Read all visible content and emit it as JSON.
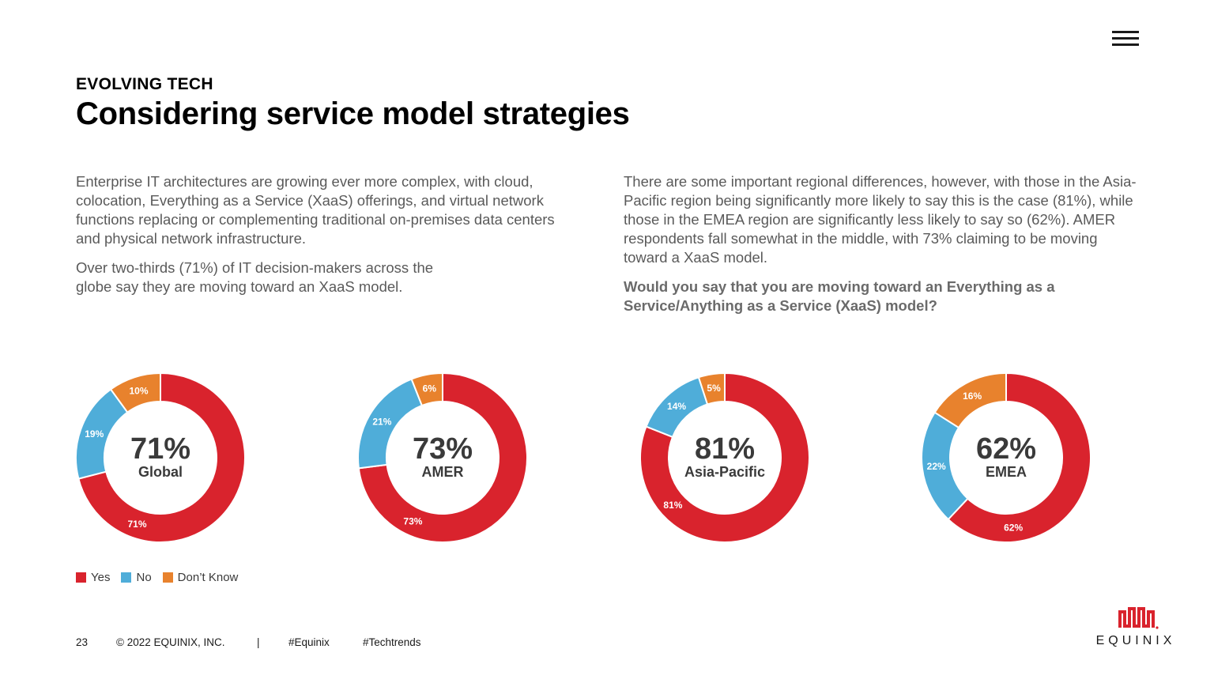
{
  "header": {
    "eyebrow": "EVOLVING TECH",
    "title": "Considering service model strategies"
  },
  "body": {
    "left_para1": "Enterprise IT architectures are growing ever more complex, with cloud, colocation, Everything as a Service (XaaS) offerings, and virtual network functions replacing or complementing traditional on-premises data centers and physical network infrastructure.",
    "left_para2": "Over two-thirds (71%) of IT decision-makers across the globe say they are moving toward an XaaS model.",
    "right_para": "There are some important regional differences, however, with those in the Asia-Pacific region being significantly more likely to say this is the case (81%), while those in the EMEA region are significantly less likely to say so (62%). AMER respondents fall somewhat in the middle, with 73% claiming to be moving toward a XaaS model.",
    "question": "Would you say that you are moving toward an Everything as a Service/Anything as a Service (XaaS) model?"
  },
  "colors": {
    "yes": "#d9232d",
    "no": "#4fadd9",
    "dont_know": "#e8822d"
  },
  "chart_data": [
    {
      "type": "pie",
      "title": "Global",
      "center_value": "71%",
      "categories": [
        "Yes",
        "No",
        "Don't Know"
      ],
      "values": [
        71,
        19,
        10
      ],
      "labels": [
        "71%",
        "19%",
        "10%"
      ]
    },
    {
      "type": "pie",
      "title": "AMER",
      "center_value": "73%",
      "categories": [
        "Yes",
        "No",
        "Don't Know"
      ],
      "values": [
        73,
        21,
        6
      ],
      "labels": [
        "73%",
        "21%",
        "6%"
      ]
    },
    {
      "type": "pie",
      "title": "Asia-Pacific",
      "center_value": "81%",
      "categories": [
        "Yes",
        "No",
        "Don't Know"
      ],
      "values": [
        81,
        14,
        5
      ],
      "labels": [
        "81%",
        "14%",
        "5%"
      ]
    },
    {
      "type": "pie",
      "title": "EMEA",
      "center_value": "62%",
      "categories": [
        "Yes",
        "No",
        "Don't Know"
      ],
      "values": [
        62,
        22,
        16
      ],
      "labels": [
        "62%",
        "22%",
        "16%"
      ]
    }
  ],
  "legend": {
    "yes": "Yes",
    "no": "No",
    "dont_know": "Don’t Know"
  },
  "footer": {
    "page": "23",
    "copyright": "© 2022 EQUINIX, INC.",
    "separator": "|",
    "tag1": "#Equinix",
    "tag2": "#Techtrends"
  },
  "logo": {
    "wordmark": "EQUINIX"
  }
}
